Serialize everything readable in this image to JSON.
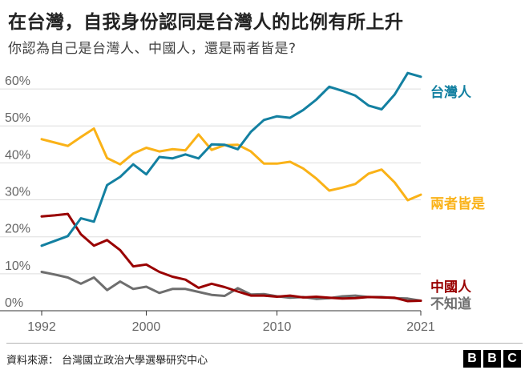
{
  "title": "在台灣，自我身份認同是台灣人的比例有所上升",
  "subtitle": "你認為自己是台灣人、中國人，還是兩者皆是?",
  "source": "資料來源：  台灣國立政治大學選舉研究中心",
  "logo": [
    "B",
    "B",
    "C"
  ],
  "chart_data": {
    "type": "line",
    "x": [
      1992,
      1993,
      1994,
      1995,
      1996,
      1997,
      1998,
      1999,
      2000,
      2001,
      2002,
      2003,
      2004,
      2005,
      2006,
      2007,
      2008,
      2009,
      2010,
      2011,
      2012,
      2013,
      2014,
      2015,
      2016,
      2017,
      2018,
      2019,
      2020,
      2021
    ],
    "xticks": [
      "1992",
      "2000",
      "2010",
      "2021"
    ],
    "xtick_values": [
      1992,
      2000,
      2010,
      2021
    ],
    "ylim": [
      0,
      65
    ],
    "yticks": [
      "0%",
      "10%",
      "20%",
      "30%",
      "40%",
      "50%",
      "60%"
    ],
    "ytick_values": [
      0,
      10,
      20,
      30,
      40,
      50,
      60
    ],
    "grid": true,
    "series": [
      {
        "name": "台灣人",
        "color": "#1380a1",
        "values": [
          17.6,
          18.9,
          20.2,
          25.0,
          24.1,
          34.0,
          36.2,
          39.6,
          36.9,
          41.6,
          41.2,
          42.3,
          41.2,
          45.0,
          44.9,
          43.7,
          48.4,
          51.6,
          52.6,
          52.2,
          54.3,
          57.1,
          60.6,
          59.5,
          58.2,
          55.5,
          54.5,
          58.5,
          64.3,
          63.3
        ]
      },
      {
        "name": "兩者皆是",
        "color": "#fab217",
        "values": [
          46.4,
          45.5,
          44.6,
          47.0,
          49.3,
          41.3,
          39.6,
          42.5,
          44.1,
          43.1,
          43.7,
          43.4,
          47.7,
          43.5,
          44.8,
          44.9,
          43.1,
          39.8,
          39.8,
          40.3,
          38.5,
          35.8,
          32.5,
          33.3,
          34.3,
          37.1,
          38.2,
          34.7,
          29.9,
          31.4
        ]
      },
      {
        "name": "中國人",
        "color": "#990000",
        "values": [
          25.5,
          25.8,
          26.2,
          20.7,
          17.6,
          19.1,
          16.4,
          12.0,
          12.5,
          10.5,
          9.2,
          8.4,
          6.2,
          7.3,
          6.4,
          5.2,
          4.1,
          4.1,
          3.8,
          4.1,
          3.6,
          3.8,
          3.5,
          3.3,
          3.4,
          3.7,
          3.6,
          3.5,
          2.6,
          2.7
        ]
      },
      {
        "name": "不知道",
        "color": "#6e6e6e",
        "values": [
          10.5,
          9.8,
          9.0,
          7.3,
          9.0,
          5.6,
          7.9,
          5.9,
          6.5,
          4.8,
          5.9,
          5.9,
          5.1,
          4.3,
          4.0,
          6.1,
          4.4,
          4.5,
          3.9,
          3.5,
          3.7,
          3.2,
          3.4,
          3.9,
          4.1,
          3.7,
          3.7,
          3.4,
          3.3,
          2.7
        ]
      }
    ]
  }
}
